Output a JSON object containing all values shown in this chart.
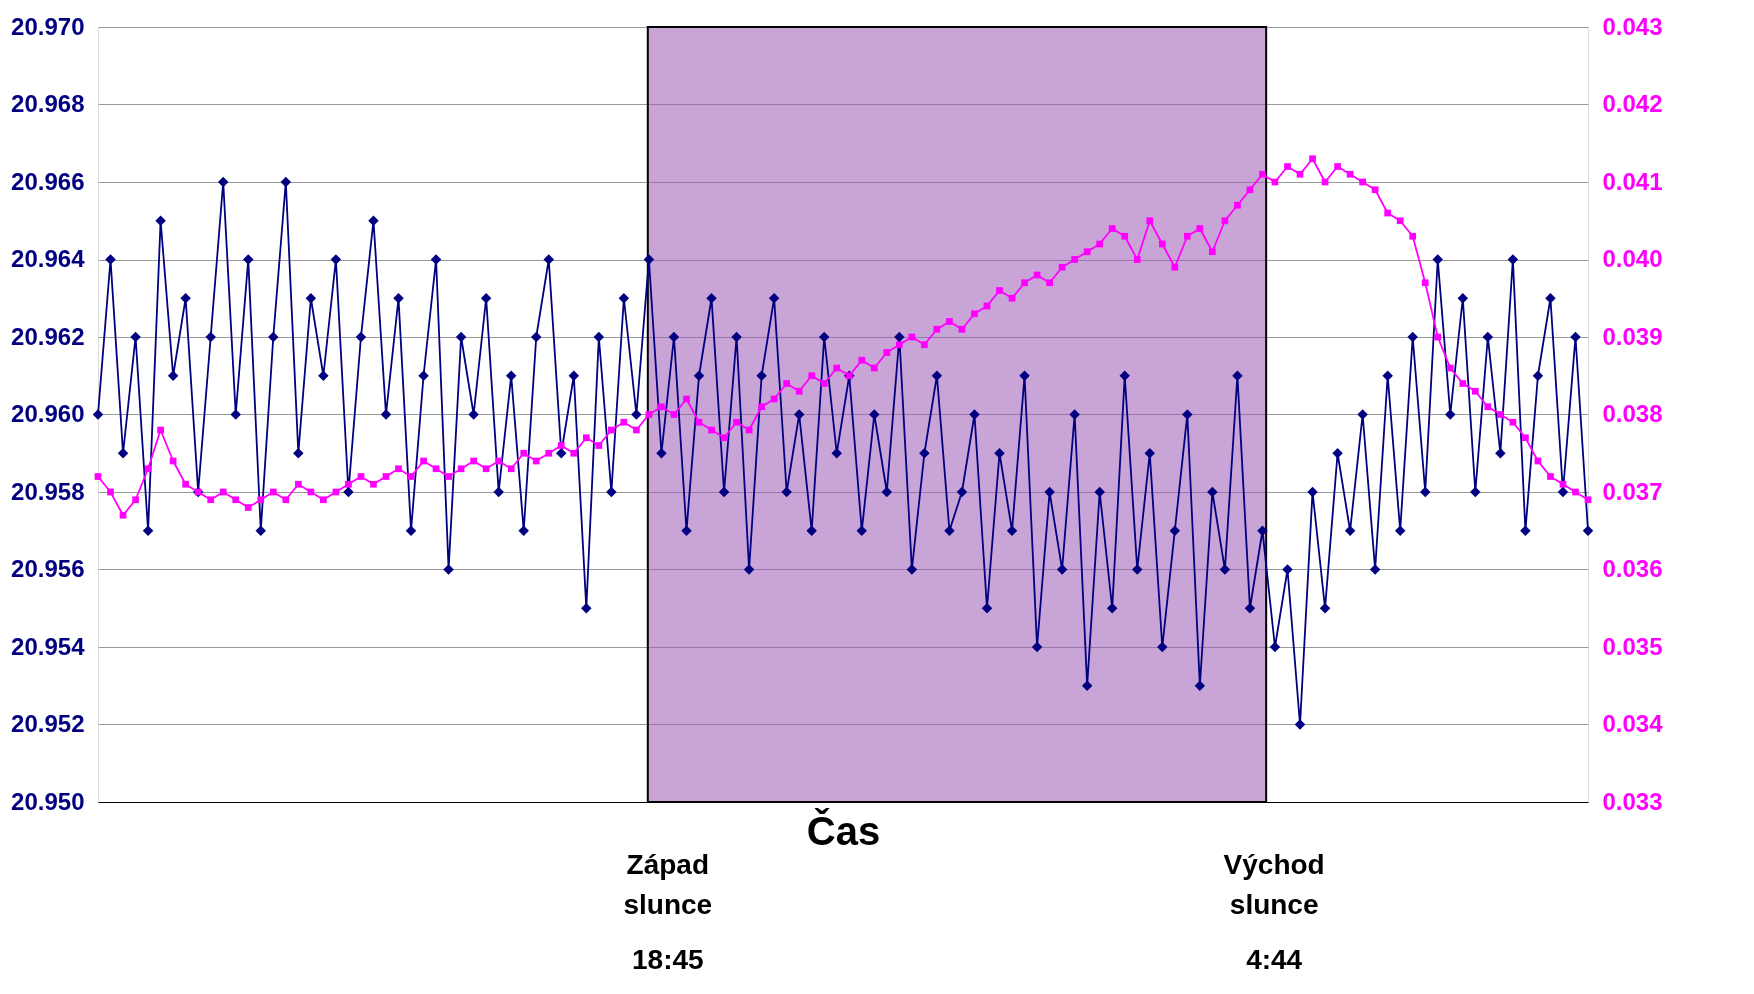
{
  "chart_data": {
    "type": "line",
    "xlabel": "Čas",
    "categories": [
      null,
      null,
      null,
      null,
      null,
      null,
      null,
      null,
      null,
      null,
      null,
      null,
      null,
      null,
      null,
      null,
      null,
      null,
      null,
      null,
      null,
      null,
      null,
      null,
      null,
      null,
      null,
      null,
      null,
      null,
      null,
      null,
      null,
      null,
      null,
      null,
      null,
      null,
      null,
      null,
      null,
      null,
      null,
      null,
      null,
      null,
      null,
      null,
      null,
      null,
      null,
      null,
      null,
      null,
      null,
      null,
      null,
      null,
      null,
      null,
      null,
      null,
      null,
      null,
      null,
      null,
      null,
      null,
      null,
      null,
      null,
      null,
      null,
      null,
      null,
      null,
      null,
      null,
      null,
      null,
      null,
      null,
      null,
      null,
      null,
      null,
      null,
      null,
      null,
      null,
      null,
      null,
      null,
      null,
      null,
      null,
      null,
      null,
      null,
      null,
      null,
      null,
      null,
      null,
      null,
      null,
      null,
      null,
      null,
      null,
      null,
      null,
      null,
      null,
      null,
      null,
      null,
      null,
      null,
      null
    ],
    "series": [
      {
        "color": "#000080",
        "marker": "diamond",
        "values": [
          20.96,
          20.964,
          20.959,
          20.962,
          20.957,
          20.965,
          20.961,
          20.963,
          20.958,
          20.962,
          20.966,
          20.96,
          20.964,
          20.957,
          20.962,
          20.966,
          20.959,
          20.963,
          20.961,
          20.964,
          20.958,
          20.962,
          20.965,
          20.96,
          20.963,
          20.957,
          20.961,
          20.964,
          20.956,
          20.962,
          20.96,
          20.963,
          20.958,
          20.961,
          20.957,
          20.962,
          20.964,
          20.959,
          20.961,
          20.955,
          20.962,
          20.958,
          20.963,
          20.96,
          20.964,
          20.959,
          20.962,
          20.957,
          20.961,
          20.963,
          20.958,
          20.962,
          20.956,
          20.961,
          20.963,
          20.958,
          20.96,
          20.957,
          20.962,
          20.959,
          20.961,
          20.957,
          20.96,
          20.958,
          20.962,
          20.956,
          20.959,
          20.961,
          20.957,
          20.958,
          20.96,
          20.955,
          20.959,
          20.957,
          20.961,
          20.954,
          20.958,
          20.956,
          20.96,
          20.953,
          20.958,
          20.955,
          20.961,
          20.956,
          20.959,
          20.954,
          20.957,
          20.96,
          20.953,
          20.958,
          20.956,
          20.961,
          20.955,
          20.957,
          20.954,
          20.956,
          20.952,
          20.958,
          20.955,
          20.959,
          20.957,
          20.96,
          20.956,
          20.961,
          20.957,
          20.962,
          20.958,
          20.964,
          20.96,
          20.963,
          20.958,
          20.962,
          20.959,
          20.964,
          20.957,
          20.961,
          20.963,
          20.958,
          20.962,
          20.957
        ]
      },
      {
        "color": "#ff00ff",
        "marker": "square",
        "axis": "y2",
        "values": [
          0.0372,
          0.037,
          0.0367,
          0.0369,
          0.0373,
          0.0378,
          0.0374,
          0.0371,
          0.037,
          0.0369,
          0.037,
          0.0369,
          0.0368,
          0.0369,
          0.037,
          0.0369,
          0.0371,
          0.037,
          0.0369,
          0.037,
          0.0371,
          0.0372,
          0.0371,
          0.0372,
          0.0373,
          0.0372,
          0.0374,
          0.0373,
          0.0372,
          0.0373,
          0.0374,
          0.0373,
          0.0374,
          0.0373,
          0.0375,
          0.0374,
          0.0375,
          0.0376,
          0.0375,
          0.0377,
          0.0376,
          0.0378,
          0.0379,
          0.0378,
          0.038,
          0.0381,
          0.038,
          0.0382,
          0.0379,
          0.0378,
          0.0377,
          0.0379,
          0.0378,
          0.0381,
          0.0382,
          0.0384,
          0.0383,
          0.0385,
          0.0384,
          0.0386,
          0.0385,
          0.0387,
          0.0386,
          0.0388,
          0.0389,
          0.039,
          0.0389,
          0.0391,
          0.0392,
          0.0391,
          0.0393,
          0.0394,
          0.0396,
          0.0395,
          0.0397,
          0.0398,
          0.0397,
          0.0399,
          0.04,
          0.0401,
          0.0402,
          0.0404,
          0.0403,
          0.04,
          0.0405,
          0.0402,
          0.0399,
          0.0403,
          0.0404,
          0.0401,
          0.0405,
          0.0407,
          0.0409,
          0.0411,
          0.041,
          0.0412,
          0.0411,
          0.0413,
          0.041,
          0.0412,
          0.0411,
          0.041,
          0.0409,
          0.0406,
          0.0405,
          0.0403,
          0.0397,
          0.039,
          0.0386,
          0.0384,
          0.0383,
          0.0381,
          0.038,
          0.0379,
          0.0377,
          0.0374,
          0.0372,
          0.0371,
          0.037,
          0.0369
        ]
      }
    ],
    "ylim": [
      20.95,
      20.97
    ],
    "yticks": [
      {
        "value": 20.95,
        "label": "20.950"
      },
      {
        "value": 20.952,
        "label": "20.952"
      },
      {
        "value": 20.954,
        "label": "20.954"
      },
      {
        "value": 20.956,
        "label": "20.956"
      },
      {
        "value": 20.958,
        "label": "20.958"
      },
      {
        "value": 20.96,
        "label": "20.960"
      },
      {
        "value": 20.962,
        "label": "20.962"
      },
      {
        "value": 20.964,
        "label": "20.964"
      },
      {
        "value": 20.966,
        "label": "20.966"
      },
      {
        "value": 20.968,
        "label": "20.968"
      },
      {
        "value": 20.97,
        "label": "20.970"
      }
    ],
    "y2lim": [
      0.033,
      0.043
    ],
    "y2ticks": [
      0.033,
      0.034,
      0.035,
      0.036,
      0.037,
      0.038,
      0.039,
      {
        "value": 0.04,
        "label": "0.040"
      },
      0.041,
      0.042,
      0.043
    ],
    "grid": "y",
    "line_style": "solid",
    "annotations": [
      "Západ slunce",
      "18:45",
      "Východ slunce",
      "4:44"
    ]
  }
}
